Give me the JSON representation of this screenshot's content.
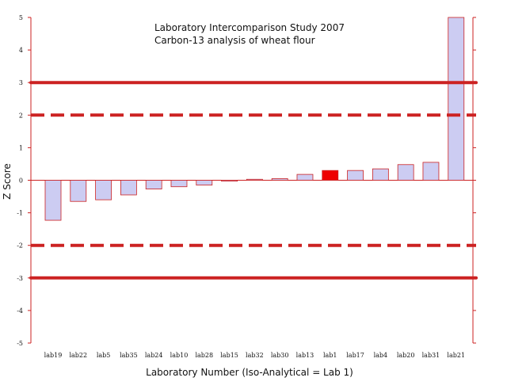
{
  "chart_data": {
    "type": "bar",
    "title": "Laboratory Intercomparison Study 2007",
    "subtitle": "Carbon-13 analysis of wheat flour",
    "xlabel": "Laboratory Number (Iso-Analytical = Lab 1)",
    "ylabel": "Z Score",
    "ylim": [
      -5,
      5
    ],
    "yticks": [
      "5",
      "4",
      "3",
      "2",
      "1",
      "0",
      "-1",
      "-2",
      "-3",
      "-4",
      "-5"
    ],
    "categories": [
      "lab19",
      "lab22",
      "lab5",
      "lab35",
      "lab24",
      "lab10",
      "lab28",
      "lab15",
      "lab32",
      "lab30",
      "lab13",
      "lab1",
      "lab17",
      "lab4",
      "lab20",
      "lab31",
      "lab21"
    ],
    "values": [
      -1.23,
      -0.65,
      -0.6,
      -0.45,
      -0.27,
      -0.2,
      -0.15,
      -0.03,
      0.03,
      0.05,
      0.18,
      0.3,
      0.3,
      0.35,
      0.48,
      0.55,
      5.0
    ],
    "highlight_category": "lab1",
    "reference_lines": [
      {
        "y": 3,
        "style": "solid"
      },
      {
        "y": 2,
        "style": "dashed"
      },
      {
        "y": -2,
        "style": "dashed"
      },
      {
        "y": -3,
        "style": "solid"
      }
    ],
    "colors": {
      "bar_fill": "#ccccf2",
      "bar_stroke": "#cc2222",
      "highlight_fill": "#ee0000",
      "axis": "#cc2222",
      "reference_line": "#cc2222"
    },
    "grid": false
  }
}
